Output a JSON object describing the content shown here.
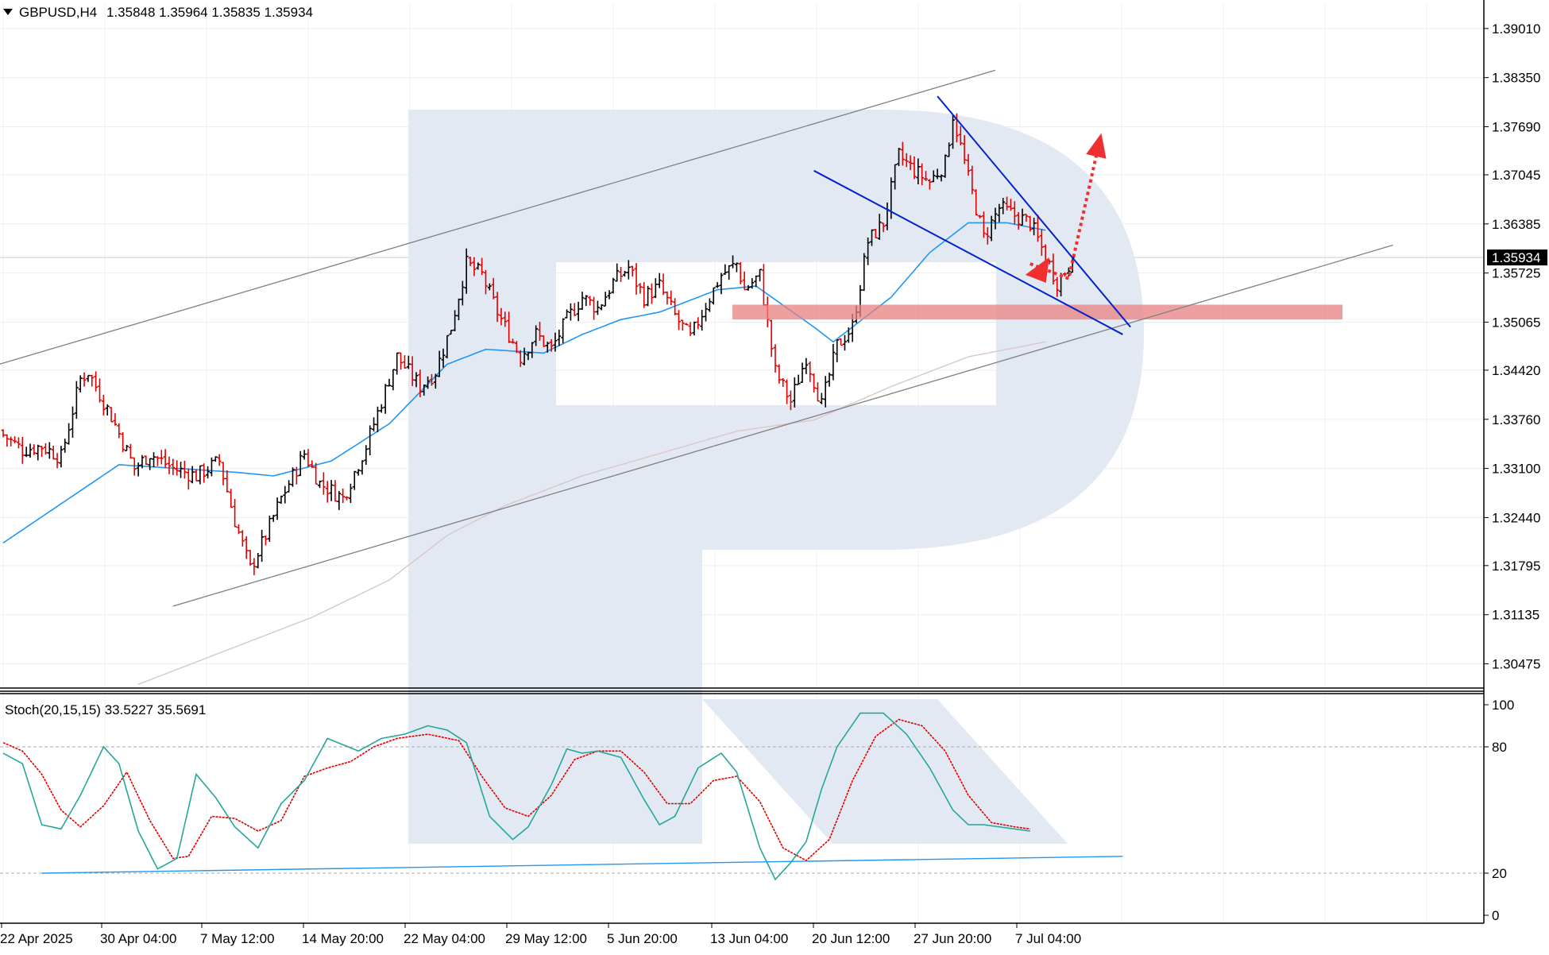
{
  "header": {
    "symbol_label": "GBPUSD,H4",
    "ohlc": "1.35848 1.35964 1.35835 1.35934"
  },
  "stoch_header": "Stoch(20,15,15) 33.5227 35.5691",
  "current_price_label": "1.35934",
  "colors": {
    "bull": "#000000",
    "bear": "#e00000",
    "ma_fast": "#2196f3",
    "ma_slow": "#d9c7c7",
    "channel": "#808080",
    "wedge": "#0022cc",
    "zone": "#e88080",
    "arrow": "#f03030",
    "stoch_main": "#26a69a",
    "stoch_signal": "#e00000",
    "watermark": "#e3e9f2"
  },
  "chart_data": [
    {
      "type": "candlestick",
      "symbol": "GBPUSD",
      "timeframe": "H4",
      "ylim": [
        1.3015,
        1.3935
      ],
      "y_ticks": [
        "1.39010",
        "1.38350",
        "1.37690",
        "1.37045",
        "1.36385",
        "1.35725",
        "1.35065",
        "1.34420",
        "1.33760",
        "1.33100",
        "1.32440",
        "1.31795",
        "1.31135",
        "1.30475"
      ],
      "x_ticks": [
        "22 Apr 2025",
        "30 Apr 04:00",
        "7 May 12:00",
        "14 May 20:00",
        "22 May 04:00",
        "29 May 12:00",
        "5 Jun 20:00",
        "13 Jun 04:00",
        "20 Jun 12:00",
        "27 Jun 20:00",
        "7 Jul 04:00"
      ],
      "last_close": 1.35934,
      "close_anchors": [
        [
          0,
          1.3355
        ],
        [
          5,
          1.3335
        ],
        [
          10,
          1.334
        ],
        [
          15,
          1.3325
        ],
        [
          20,
          1.343
        ],
        [
          22,
          1.344
        ],
        [
          28,
          1.338
        ],
        [
          34,
          1.331
        ],
        [
          38,
          1.333
        ],
        [
          44,
          1.331
        ],
        [
          50,
          1.33
        ],
        [
          56,
          1.332
        ],
        [
          60,
          1.324
        ],
        [
          64,
          1.3175
        ],
        [
          68,
          1.322
        ],
        [
          72,
          1.327
        ],
        [
          78,
          1.333
        ],
        [
          82,
          1.329
        ],
        [
          88,
          1.327
        ],
        [
          94,
          1.334
        ],
        [
          98,
          1.34
        ],
        [
          102,
          1.346
        ],
        [
          108,
          1.342
        ],
        [
          112,
          1.344
        ],
        [
          116,
          1.35
        ],
        [
          120,
          1.3585
        ],
        [
          124,
          1.357
        ],
        [
          128,
          1.352
        ],
        [
          134,
          1.346
        ],
        [
          138,
          1.349
        ],
        [
          142,
          1.347
        ],
        [
          146,
          1.351
        ],
        [
          150,
          1.354
        ],
        [
          154,
          1.3525
        ],
        [
          158,
          1.356
        ],
        [
          162,
          1.358
        ],
        [
          166,
          1.354
        ],
        [
          170,
          1.3555
        ],
        [
          174,
          1.3515
        ],
        [
          178,
          1.3485
        ],
        [
          182,
          1.353
        ],
        [
          186,
          1.357
        ],
        [
          190,
          1.3585
        ],
        [
          192,
          1.355
        ],
        [
          196,
          1.357
        ],
        [
          200,
          1.344
        ],
        [
          204,
          1.34
        ],
        [
          208,
          1.346
        ],
        [
          212,
          1.3395
        ],
        [
          216,
          1.3475
        ],
        [
          220,
          1.35
        ],
        [
          224,
          1.3615
        ],
        [
          228,
          1.364
        ],
        [
          232,
          1.373
        ],
        [
          236,
          1.371
        ],
        [
          240,
          1.3695
        ],
        [
          244,
          1.372
        ],
        [
          246,
          1.3785
        ],
        [
          250,
          1.37
        ],
        [
          254,
          1.362
        ],
        [
          258,
          1.366
        ],
        [
          262,
          1.365
        ],
        [
          266,
          1.364
        ],
        [
          270,
          1.3595
        ],
        [
          273,
          1.356
        ],
        [
          277,
          1.359
        ]
      ],
      "ma_fast_anchors": [
        [
          0,
          1.321
        ],
        [
          20,
          1.328
        ],
        [
          30,
          1.3315
        ],
        [
          45,
          1.331
        ],
        [
          60,
          1.3305
        ],
        [
          70,
          1.33
        ],
        [
          85,
          1.332
        ],
        [
          100,
          1.337
        ],
        [
          115,
          1.345
        ],
        [
          125,
          1.347
        ],
        [
          140,
          1.3465
        ],
        [
          150,
          1.349
        ],
        [
          160,
          1.351
        ],
        [
          170,
          1.352
        ],
        [
          185,
          1.355
        ],
        [
          195,
          1.3555
        ],
        [
          210,
          1.35
        ],
        [
          215,
          1.348
        ],
        [
          220,
          1.35
        ],
        [
          230,
          1.354
        ],
        [
          240,
          1.36
        ],
        [
          250,
          1.364
        ],
        [
          260,
          1.364
        ],
        [
          270,
          1.363
        ]
      ],
      "ma_slow_anchors": [
        [
          35,
          1.302
        ],
        [
          60,
          1.307
        ],
        [
          80,
          1.311
        ],
        [
          100,
          1.316
        ],
        [
          115,
          1.322
        ],
        [
          130,
          1.326
        ],
        [
          150,
          1.33
        ],
        [
          170,
          1.333
        ],
        [
          190,
          1.336
        ],
        [
          210,
          1.3375
        ],
        [
          230,
          1.342
        ],
        [
          250,
          1.346
        ],
        [
          270,
          1.348
        ]
      ],
      "resistance_zone": [
        1.351,
        1.353
      ],
      "channel_upper": [
        [
          -1,
          1.345
        ],
        [
          257,
          1.3845
        ]
      ],
      "channel_lower": [
        [
          44,
          1.3125
        ],
        [
          360,
          1.361
        ]
      ],
      "wedge_upper": [
        [
          242,
          1.381
        ],
        [
          292,
          1.35
        ]
      ],
      "wedge_lower": [
        [
          210,
          1.371
        ],
        [
          290,
          1.349
        ]
      ],
      "forecast_arrow": [
        [
          266,
          1.3585
        ],
        [
          276,
          1.3565
        ],
        [
          284,
          1.375
        ]
      ]
    },
    {
      "type": "line",
      "indicator": "Stochastic(20,15,15)",
      "ylim": [
        0,
        100
      ],
      "y_ticks": [
        100,
        80,
        20,
        0
      ],
      "levels": [
        80,
        20
      ],
      "main": [
        [
          0,
          77
        ],
        [
          5,
          72
        ],
        [
          10,
          43
        ],
        [
          15,
          41
        ],
        [
          20,
          57
        ],
        [
          26,
          80
        ],
        [
          30,
          72
        ],
        [
          35,
          40
        ],
        [
          40,
          22
        ],
        [
          45,
          27
        ],
        [
          50,
          67
        ],
        [
          55,
          56
        ],
        [
          60,
          42
        ],
        [
          66,
          32
        ],
        [
          72,
          53
        ],
        [
          78,
          64
        ],
        [
          84,
          84
        ],
        [
          88,
          81
        ],
        [
          92,
          78
        ],
        [
          98,
          84
        ],
        [
          104,
          86
        ],
        [
          110,
          90
        ],
        [
          115,
          88
        ],
        [
          120,
          82
        ],
        [
          126,
          47
        ],
        [
          132,
          36
        ],
        [
          136,
          42
        ],
        [
          142,
          62
        ],
        [
          146,
          79
        ],
        [
          150,
          77
        ],
        [
          154,
          78
        ],
        [
          160,
          75
        ],
        [
          166,
          55
        ],
        [
          170,
          43
        ],
        [
          174,
          47
        ],
        [
          180,
          70
        ],
        [
          186,
          77
        ],
        [
          190,
          68
        ],
        [
          196,
          32
        ],
        [
          200,
          17
        ],
        [
          204,
          25
        ],
        [
          208,
          35
        ],
        [
          212,
          60
        ],
        [
          216,
          80
        ],
        [
          222,
          96
        ],
        [
          228,
          96
        ],
        [
          234,
          86
        ],
        [
          240,
          70
        ],
        [
          246,
          50
        ],
        [
          250,
          43
        ],
        [
          254,
          43
        ],
        [
          258,
          42
        ],
        [
          262,
          41
        ],
        [
          266,
          40
        ]
      ],
      "signal": [
        [
          0,
          82
        ],
        [
          5,
          78
        ],
        [
          10,
          67
        ],
        [
          15,
          50
        ],
        [
          20,
          42
        ],
        [
          26,
          52
        ],
        [
          32,
          68
        ],
        [
          38,
          45
        ],
        [
          44,
          27
        ],
        [
          48,
          28
        ],
        [
          54,
          47
        ],
        [
          60,
          46
        ],
        [
          66,
          40
        ],
        [
          72,
          45
        ],
        [
          78,
          66
        ],
        [
          84,
          70
        ],
        [
          90,
          73
        ],
        [
          96,
          80
        ],
        [
          102,
          84
        ],
        [
          110,
          86
        ],
        [
          118,
          83
        ],
        [
          124,
          66
        ],
        [
          130,
          51
        ],
        [
          136,
          47
        ],
        [
          142,
          57
        ],
        [
          148,
          74
        ],
        [
          154,
          78
        ],
        [
          160,
          78
        ],
        [
          166,
          68
        ],
        [
          172,
          53
        ],
        [
          178,
          53
        ],
        [
          184,
          64
        ],
        [
          190,
          66
        ],
        [
          196,
          54
        ],
        [
          202,
          32
        ],
        [
          208,
          26
        ],
        [
          214,
          36
        ],
        [
          220,
          64
        ],
        [
          226,
          85
        ],
        [
          232,
          93
        ],
        [
          238,
          90
        ],
        [
          244,
          78
        ],
        [
          250,
          57
        ],
        [
          256,
          44
        ],
        [
          262,
          42
        ],
        [
          266,
          41
        ]
      ],
      "trendline": [
        [
          10,
          20
        ],
        [
          290,
          28
        ]
      ]
    }
  ]
}
